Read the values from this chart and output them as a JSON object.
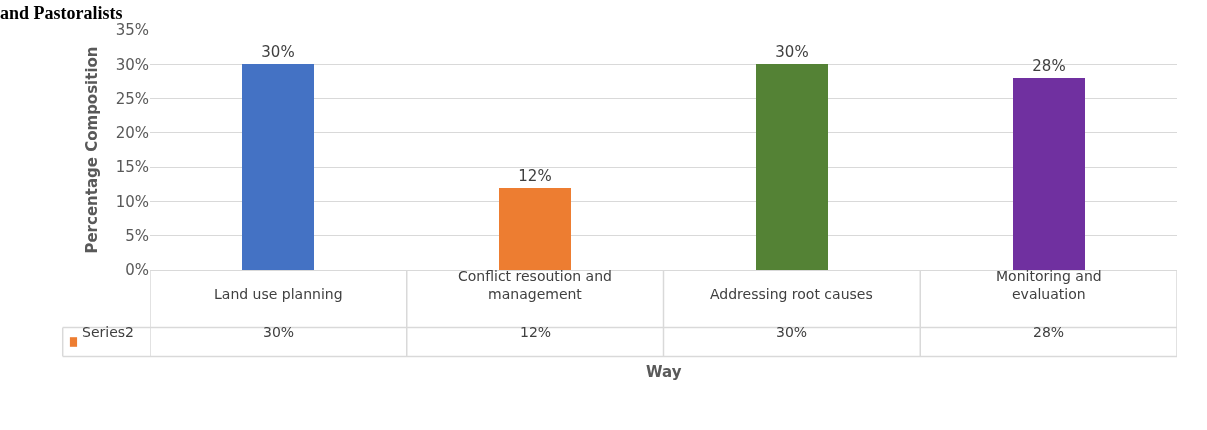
{
  "chart_data": {
    "type": "bar",
    "title": "and Pastoralists",
    "xlabel": "Way",
    "ylabel": "Percentage Composition",
    "categories": [
      "Land use planning",
      "Conflict resoution and management",
      "Addressing root causes",
      "Monitoring and evaluation"
    ],
    "series": [
      {
        "name": "Series2",
        "color": "#ed7d31",
        "colors": [
          "#4472c4",
          "#ed7d31",
          "#548235",
          "#7030a0"
        ],
        "values": [
          30,
          12,
          30,
          28
        ],
        "value_labels": [
          "30%",
          "12%",
          "30%",
          "28%"
        ]
      }
    ],
    "ylim": [
      0,
      35
    ],
    "yticks": [
      {
        "value": 0,
        "label": "0%"
      },
      {
        "value": 5,
        "label": "5%"
      },
      {
        "value": 10,
        "label": "10%"
      },
      {
        "value": 15,
        "label": "15%"
      },
      {
        "value": 20,
        "label": "20%"
      },
      {
        "value": 25,
        "label": "25%"
      },
      {
        "value": 30,
        "label": "30%"
      },
      {
        "value": 35,
        "label": "35%"
      }
    ],
    "grid": "y",
    "legend": false
  }
}
